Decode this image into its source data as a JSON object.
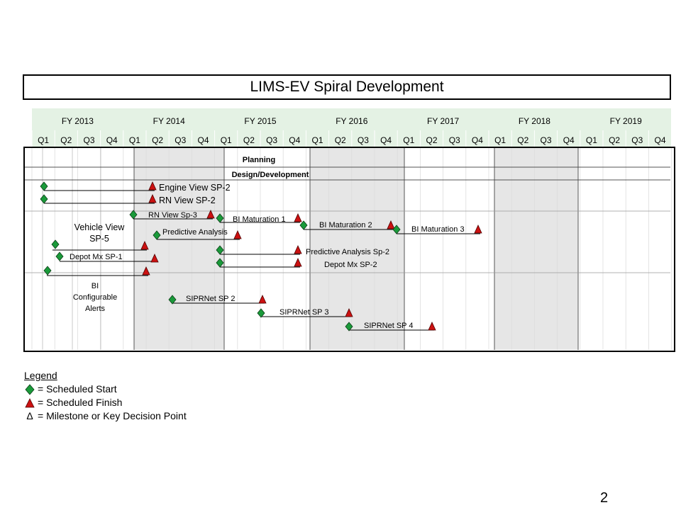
{
  "title": "LIMS-EV Spiral Development",
  "fiscal_years": [
    "FY 2013",
    "FY 2014",
    "FY 2015",
    "FY 2016",
    "FY 2017",
    "FY 2018",
    "FY 2019"
  ],
  "quarters": [
    "Q1",
    "Q2",
    "Q3",
    "Q4"
  ],
  "phases": [
    "Planning",
    "Design/Development"
  ],
  "colors": {
    "header": "#e4f2e4",
    "shade": "#e6e6e6",
    "start": "#1a9a3a",
    "finish": "#cc1111"
  },
  "tasks": [
    {
      "label": "Engine View SP-2",
      "start": "FY 2013 Q1",
      "finish": "FY 2014 Q2"
    },
    {
      "label": "RN View SP-2",
      "start": "FY 2013 Q1",
      "finish": "FY 2014 Q2"
    },
    {
      "label": "RN View Sp-3",
      "start": "FY 2014 Q1",
      "finish": "FY 2014 Q4"
    },
    {
      "label": "BI Maturation 1",
      "start": "FY 2015 Q1",
      "finish": "FY 2015 Q4"
    },
    {
      "label": "BI Maturation 2",
      "start": "FY 2015 Q4",
      "finish": "FY 2016 Q4"
    },
    {
      "label": "BI Maturation 3",
      "start": "FY 2017 Q1",
      "finish": "FY 2017 Q4"
    },
    {
      "label": "Predictive Analysis",
      "start": "FY 2014 Q2",
      "finish": "FY 2015 Q1"
    },
    {
      "label": "Vehicle View SP-5",
      "start": "FY 2013 Q1",
      "finish": "FY 2014 Q1"
    },
    {
      "label": "Depot Mx SP-1",
      "start": "FY 2013 Q2",
      "finish": "FY 2014 Q2"
    },
    {
      "label": "Predictive Analysis Sp-2",
      "start": "FY 2015 Q1",
      "finish": "FY 2015 Q4"
    },
    {
      "label": "Depot Mx SP-2",
      "start": "FY 2015 Q1",
      "finish": "FY 2015 Q4"
    },
    {
      "label": "BI Configurable Alerts",
      "start": "FY 2013 Q1",
      "finish": "FY 2014 Q1"
    },
    {
      "label": "SIPRNet SP 2",
      "start": "FY 2014 Q2",
      "finish": "FY 2015 Q3"
    },
    {
      "label": "SIPRNet SP 3",
      "start": "FY 2015 Q3",
      "finish": "FY 2016 Q2"
    },
    {
      "label": "SIPRNet SP 4",
      "start": "FY 2016 Q2",
      "finish": "FY 2017 Q2"
    }
  ],
  "legend": {
    "title": "Legend",
    "start": "= Scheduled Start",
    "finish": "= Scheduled Finish",
    "milestone_symbol": "Δ",
    "milestone": "= Milestone or Key Decision Point"
  },
  "page_number": "2"
}
